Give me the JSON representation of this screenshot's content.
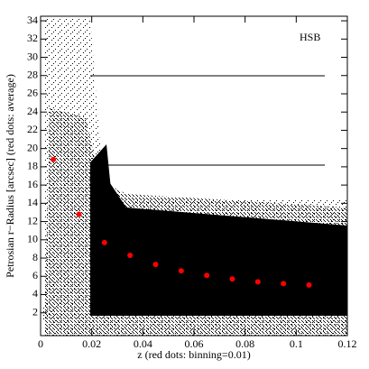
{
  "chart_data": {
    "type": "scatter",
    "xlabel": "z   (red dots: binning=0.01)",
    "ylabel": "Petrosian r−Radius [arcsec] (red dots: average)",
    "annotation": "HSB",
    "xlim": [
      0,
      0.12
    ],
    "xticks": [
      0,
      0.02,
      0.04,
      0.06,
      0.08,
      0.1,
      0.12
    ],
    "ylim": [
      -0.5,
      34.5
    ],
    "yticks": [
      2,
      4,
      6,
      8,
      10,
      12,
      14,
      16,
      18,
      20,
      22,
      24,
      26,
      28,
      30,
      32,
      34
    ],
    "series": [
      {
        "color": "#ff0000",
        "x": [
          0.005,
          0.015,
          0.025,
          0.035,
          0.045,
          0.055,
          0.065,
          0.075,
          0.085,
          0.095,
          0.105
        ],
        "values": [
          18.8,
          12.8,
          9.7,
          8.3,
          7.3,
          6.6,
          6.1,
          5.7,
          5.4,
          5.2,
          5.05
        ]
      }
    ]
  }
}
